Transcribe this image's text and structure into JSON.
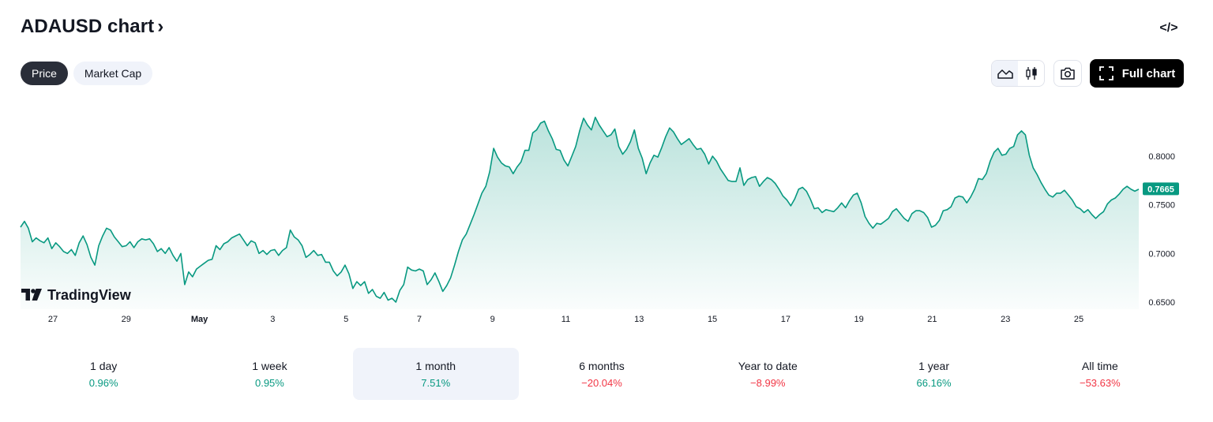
{
  "header": {
    "title": "ADAUSD chart",
    "chevron": "›",
    "embed_icon": "</>"
  },
  "tabs": [
    {
      "label": "Price",
      "active": true
    },
    {
      "label": "Market Cap",
      "active": false
    }
  ],
  "toolbar": {
    "full_chart_label": "Full chart",
    "area_icon": "area-chart-icon",
    "candle_icon": "candles-icon",
    "camera_icon": "camera-icon",
    "fullscreen_icon": "fullscreen-icon"
  },
  "brand": {
    "name": "TradingView",
    "logo_mark": "TV"
  },
  "colors": {
    "line": "#089981",
    "positive": "#089981",
    "negative": "#f23645",
    "price_badge": "#089981"
  },
  "chart_data": {
    "type": "area",
    "x_tick_labels": [
      "27",
      "29",
      "May",
      "3",
      "5",
      "7",
      "9",
      "11",
      "13",
      "15",
      "17",
      "19",
      "21",
      "23",
      "25"
    ],
    "y_tick_labels": [
      "0.8000",
      "0.7500",
      "0.7000",
      "0.6500"
    ],
    "ylim": [
      0.645,
      0.86
    ],
    "last_price": "0.7665",
    "series": [
      {
        "values": [
          0.727,
          0.733,
          0.726,
          0.712,
          0.716,
          0.713,
          0.711,
          0.716,
          0.705,
          0.711,
          0.707,
          0.702,
          0.7,
          0.704,
          0.698,
          0.711,
          0.718,
          0.709,
          0.696,
          0.688,
          0.708,
          0.718,
          0.726,
          0.724,
          0.717,
          0.712,
          0.707,
          0.708,
          0.712,
          0.706,
          0.712,
          0.715,
          0.714,
          0.715,
          0.71,
          0.702,
          0.705,
          0.7,
          0.706,
          0.698,
          0.692,
          0.7,
          0.668,
          0.681,
          0.676,
          0.684,
          0.687,
          0.69,
          0.693,
          0.694,
          0.708,
          0.704,
          0.71,
          0.712,
          0.716,
          0.718,
          0.72,
          0.714,
          0.708,
          0.713,
          0.711,
          0.7,
          0.703,
          0.699,
          0.703,
          0.704,
          0.698,
          0.703,
          0.706,
          0.724,
          0.717,
          0.714,
          0.708,
          0.696,
          0.699,
          0.703,
          0.698,
          0.699,
          0.691,
          0.691,
          0.682,
          0.677,
          0.681,
          0.688,
          0.679,
          0.664,
          0.671,
          0.667,
          0.671,
          0.659,
          0.663,
          0.656,
          0.654,
          0.66,
          0.652,
          0.654,
          0.65,
          0.662,
          0.668,
          0.686,
          0.683,
          0.682,
          0.684,
          0.682,
          0.668,
          0.673,
          0.68,
          0.671,
          0.661,
          0.667,
          0.675,
          0.688,
          0.702,
          0.714,
          0.72,
          0.73,
          0.74,
          0.751,
          0.762,
          0.769,
          0.784,
          0.808,
          0.799,
          0.793,
          0.79,
          0.789,
          0.782,
          0.789,
          0.794,
          0.806,
          0.806,
          0.824,
          0.827,
          0.834,
          0.836,
          0.826,
          0.818,
          0.807,
          0.806,
          0.796,
          0.79,
          0.8,
          0.81,
          0.826,
          0.839,
          0.832,
          0.827,
          0.84,
          0.832,
          0.826,
          0.82,
          0.822,
          0.828,
          0.81,
          0.802,
          0.807,
          0.815,
          0.827,
          0.808,
          0.798,
          0.782,
          0.793,
          0.801,
          0.799,
          0.809,
          0.82,
          0.829,
          0.825,
          0.818,
          0.812,
          0.815,
          0.818,
          0.812,
          0.807,
          0.808,
          0.802,
          0.792,
          0.8,
          0.795,
          0.787,
          0.781,
          0.775,
          0.774,
          0.774,
          0.788,
          0.77,
          0.776,
          0.778,
          0.779,
          0.769,
          0.774,
          0.778,
          0.776,
          0.772,
          0.766,
          0.759,
          0.755,
          0.749,
          0.756,
          0.766,
          0.768,
          0.764,
          0.756,
          0.746,
          0.747,
          0.742,
          0.745,
          0.744,
          0.743,
          0.747,
          0.752,
          0.747,
          0.754,
          0.76,
          0.762,
          0.752,
          0.738,
          0.731,
          0.726,
          0.731,
          0.73,
          0.733,
          0.736,
          0.743,
          0.746,
          0.741,
          0.736,
          0.733,
          0.741,
          0.744,
          0.744,
          0.742,
          0.737,
          0.727,
          0.729,
          0.734,
          0.744,
          0.745,
          0.748,
          0.757,
          0.759,
          0.758,
          0.752,
          0.758,
          0.766,
          0.777,
          0.776,
          0.782,
          0.795,
          0.804,
          0.808,
          0.801,
          0.802,
          0.808,
          0.81,
          0.822,
          0.826,
          0.822,
          0.801,
          0.788,
          0.781,
          0.773,
          0.766,
          0.76,
          0.758,
          0.762,
          0.762,
          0.765,
          0.76,
          0.755,
          0.748,
          0.746,
          0.742,
          0.745,
          0.74,
          0.736,
          0.74,
          0.743,
          0.751,
          0.755,
          0.757,
          0.761,
          0.766,
          0.769,
          0.766,
          0.764,
          0.766
        ]
      }
    ]
  },
  "periods": [
    {
      "label": "1 day",
      "value": "0.96%",
      "positive": true,
      "active": false
    },
    {
      "label": "1 week",
      "value": "0.95%",
      "positive": true,
      "active": false
    },
    {
      "label": "1 month",
      "value": "7.51%",
      "positive": true,
      "active": true
    },
    {
      "label": "6 months",
      "value": "−20.04%",
      "positive": false,
      "active": false
    },
    {
      "label": "Year to date",
      "value": "−8.99%",
      "positive": false,
      "active": false
    },
    {
      "label": "1 year",
      "value": "66.16%",
      "positive": true,
      "active": false
    },
    {
      "label": "All time",
      "value": "−53.63%",
      "positive": false,
      "active": false
    }
  ]
}
